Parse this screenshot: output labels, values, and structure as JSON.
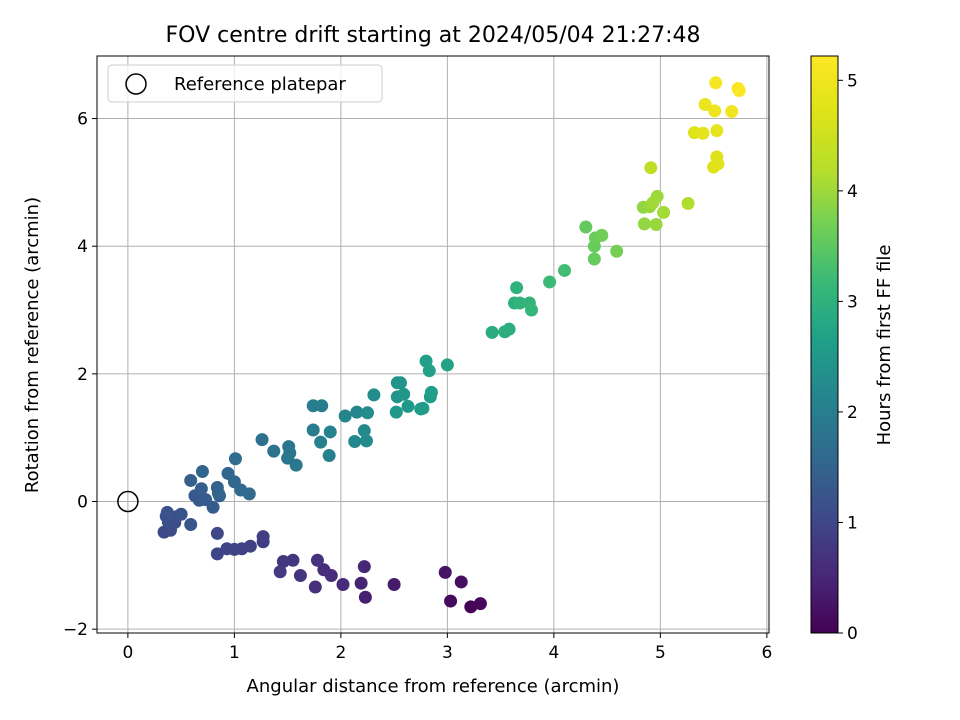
{
  "chart_data": {
    "type": "scatter",
    "title": "FOV centre drift starting at 2024/05/04 21:27:48",
    "xlabel": "Angular distance from reference (arcmin)",
    "ylabel": "Rotation from reference (arcmin)",
    "colorbar_label": "Hours from first FF file",
    "xlim": [
      -0.29,
      6.02
    ],
    "ylim": [
      -2.06,
      6.98
    ],
    "clim": [
      0,
      5.22
    ],
    "colormap": "viridis",
    "grid": true,
    "legend": {
      "placement": "upper-left",
      "entries": [
        "Reference platepar"
      ]
    },
    "x_ticks": [
      0,
      1,
      2,
      3,
      4,
      5,
      6
    ],
    "y_ticks": [
      -2,
      0,
      2,
      4,
      6
    ],
    "c_ticks": [
      0,
      1,
      2,
      3,
      4,
      5
    ],
    "reference_point": {
      "x": 0,
      "y": 0
    },
    "points": [
      {
        "x": 3.22,
        "y": -1.65,
        "c": 0.05
      },
      {
        "x": 3.31,
        "y": -1.6,
        "c": 0.1
      },
      {
        "x": 3.03,
        "y": -1.56,
        "c": 0.15
      },
      {
        "x": 3.13,
        "y": -1.26,
        "c": 0.2
      },
      {
        "x": 2.98,
        "y": -1.11,
        "c": 0.25
      },
      {
        "x": 2.5,
        "y": -1.3,
        "c": 0.35
      },
      {
        "x": 2.23,
        "y": -1.5,
        "c": 0.4
      },
      {
        "x": 2.19,
        "y": -1.28,
        "c": 0.45
      },
      {
        "x": 2.22,
        "y": -1.02,
        "c": 0.5
      },
      {
        "x": 2.02,
        "y": -1.3,
        "c": 0.55
      },
      {
        "x": 1.91,
        "y": -1.16,
        "c": 0.6
      },
      {
        "x": 1.84,
        "y": -1.07,
        "c": 0.62
      },
      {
        "x": 1.76,
        "y": -1.34,
        "c": 0.65
      },
      {
        "x": 1.78,
        "y": -0.92,
        "c": 0.7
      },
      {
        "x": 1.62,
        "y": -1.16,
        "c": 0.72
      },
      {
        "x": 1.55,
        "y": -0.92,
        "c": 0.75
      },
      {
        "x": 1.46,
        "y": -0.94,
        "c": 0.78
      },
      {
        "x": 1.43,
        "y": -1.1,
        "c": 0.8
      },
      {
        "x": 1.27,
        "y": -0.63,
        "c": 0.85
      },
      {
        "x": 1.27,
        "y": -0.55,
        "c": 0.87
      },
      {
        "x": 1.15,
        "y": -0.7,
        "c": 0.9
      },
      {
        "x": 1.07,
        "y": -0.74,
        "c": 0.92
      },
      {
        "x": 1.0,
        "y": -0.75,
        "c": 0.95
      },
      {
        "x": 0.93,
        "y": -0.74,
        "c": 0.97
      },
      {
        "x": 0.84,
        "y": -0.82,
        "c": 1.0
      },
      {
        "x": 0.84,
        "y": -0.5,
        "c": 1.02
      },
      {
        "x": 0.34,
        "y": -0.48,
        "c": 1.05
      },
      {
        "x": 0.4,
        "y": -0.45,
        "c": 1.08
      },
      {
        "x": 0.44,
        "y": -0.33,
        "c": 1.1
      },
      {
        "x": 0.38,
        "y": -0.32,
        "c": 1.12
      },
      {
        "x": 0.45,
        "y": -0.24,
        "c": 1.15
      },
      {
        "x": 0.36,
        "y": -0.23,
        "c": 1.17
      },
      {
        "x": 0.5,
        "y": -0.2,
        "c": 1.2
      },
      {
        "x": 0.37,
        "y": -0.17,
        "c": 1.22
      },
      {
        "x": 0.59,
        "y": -0.36,
        "c": 1.25
      },
      {
        "x": 0.67,
        "y": 0.02,
        "c": 1.3
      },
      {
        "x": 0.63,
        "y": 0.09,
        "c": 1.32
      },
      {
        "x": 0.73,
        "y": 0.03,
        "c": 1.35
      },
      {
        "x": 0.8,
        "y": -0.09,
        "c": 1.37
      },
      {
        "x": 0.69,
        "y": 0.2,
        "c": 1.4
      },
      {
        "x": 0.59,
        "y": 0.33,
        "c": 1.42
      },
      {
        "x": 0.86,
        "y": 0.09,
        "c": 1.45
      },
      {
        "x": 0.84,
        "y": 0.22,
        "c": 1.47
      },
      {
        "x": 0.85,
        "y": 0.13,
        "c": 1.5
      },
      {
        "x": 0.7,
        "y": 0.47,
        "c": 1.52
      },
      {
        "x": 0.94,
        "y": 0.44,
        "c": 1.55
      },
      {
        "x": 1.0,
        "y": 0.31,
        "c": 1.57
      },
      {
        "x": 1.06,
        "y": 0.18,
        "c": 1.6
      },
      {
        "x": 1.14,
        "y": 0.12,
        "c": 1.62
      },
      {
        "x": 1.01,
        "y": 0.67,
        "c": 1.65
      },
      {
        "x": 1.26,
        "y": 0.97,
        "c": 1.75
      },
      {
        "x": 1.37,
        "y": 0.79,
        "c": 1.78
      },
      {
        "x": 1.51,
        "y": 0.86,
        "c": 1.8
      },
      {
        "x": 1.52,
        "y": 0.76,
        "c": 1.82
      },
      {
        "x": 1.5,
        "y": 0.68,
        "c": 1.85
      },
      {
        "x": 1.58,
        "y": 0.57,
        "c": 1.87
      },
      {
        "x": 1.74,
        "y": 1.12,
        "c": 1.95
      },
      {
        "x": 1.74,
        "y": 1.5,
        "c": 2.0
      },
      {
        "x": 1.82,
        "y": 1.5,
        "c": 2.02
      },
      {
        "x": 1.81,
        "y": 0.93,
        "c": 2.05
      },
      {
        "x": 1.89,
        "y": 0.72,
        "c": 2.07
      },
      {
        "x": 1.9,
        "y": 1.09,
        "c": 2.1
      },
      {
        "x": 2.04,
        "y": 1.34,
        "c": 2.15
      },
      {
        "x": 2.15,
        "y": 1.4,
        "c": 2.18
      },
      {
        "x": 2.13,
        "y": 0.94,
        "c": 2.2
      },
      {
        "x": 2.22,
        "y": 1.11,
        "c": 2.22
      },
      {
        "x": 2.24,
        "y": 0.95,
        "c": 2.25
      },
      {
        "x": 2.25,
        "y": 1.39,
        "c": 2.27
      },
      {
        "x": 2.31,
        "y": 1.67,
        "c": 2.3
      },
      {
        "x": 2.53,
        "y": 1.86,
        "c": 2.4
      },
      {
        "x": 2.56,
        "y": 1.86,
        "c": 2.42
      },
      {
        "x": 2.53,
        "y": 1.64,
        "c": 2.45
      },
      {
        "x": 2.59,
        "y": 1.68,
        "c": 2.47
      },
      {
        "x": 2.52,
        "y": 1.4,
        "c": 2.5
      },
      {
        "x": 2.63,
        "y": 1.49,
        "c": 2.52
      },
      {
        "x": 2.75,
        "y": 1.45,
        "c": 2.55
      },
      {
        "x": 2.77,
        "y": 1.46,
        "c": 2.57
      },
      {
        "x": 2.84,
        "y": 1.64,
        "c": 2.6
      },
      {
        "x": 2.85,
        "y": 1.71,
        "c": 2.62
      },
      {
        "x": 2.8,
        "y": 2.2,
        "c": 2.65
      },
      {
        "x": 2.83,
        "y": 2.05,
        "c": 2.67
      },
      {
        "x": 3.0,
        "y": 2.14,
        "c": 2.7
      },
      {
        "x": 3.42,
        "y": 2.65,
        "c": 2.9
      },
      {
        "x": 3.54,
        "y": 2.66,
        "c": 2.92
      },
      {
        "x": 3.58,
        "y": 2.7,
        "c": 2.95
      },
      {
        "x": 3.63,
        "y": 3.11,
        "c": 3.0
      },
      {
        "x": 3.65,
        "y": 3.35,
        "c": 3.02
      },
      {
        "x": 3.68,
        "y": 3.11,
        "c": 3.05
      },
      {
        "x": 3.77,
        "y": 3.11,
        "c": 3.07
      },
      {
        "x": 3.79,
        "y": 3.0,
        "c": 3.1
      },
      {
        "x": 3.96,
        "y": 3.44,
        "c": 3.2
      },
      {
        "x": 4.1,
        "y": 3.62,
        "c": 3.25
      },
      {
        "x": 4.3,
        "y": 4.3,
        "c": 3.55
      },
      {
        "x": 4.38,
        "y": 3.8,
        "c": 3.58
      },
      {
        "x": 4.38,
        "y": 4.0,
        "c": 3.6
      },
      {
        "x": 4.39,
        "y": 4.13,
        "c": 3.62
      },
      {
        "x": 4.45,
        "y": 4.17,
        "c": 3.65
      },
      {
        "x": 4.59,
        "y": 3.92,
        "c": 3.7
      },
      {
        "x": 4.84,
        "y": 4.61,
        "c": 3.9
      },
      {
        "x": 4.85,
        "y": 4.35,
        "c": 3.92
      },
      {
        "x": 4.9,
        "y": 4.62,
        "c": 3.95
      },
      {
        "x": 4.96,
        "y": 4.34,
        "c": 3.97
      },
      {
        "x": 4.97,
        "y": 4.78,
        "c": 4.0
      },
      {
        "x": 4.93,
        "y": 4.68,
        "c": 4.02
      },
      {
        "x": 5.03,
        "y": 4.53,
        "c": 4.05
      },
      {
        "x": 5.26,
        "y": 4.67,
        "c": 4.15
      },
      {
        "x": 4.91,
        "y": 5.23,
        "c": 4.3
      },
      {
        "x": 5.32,
        "y": 5.78,
        "c": 4.75
      },
      {
        "x": 5.4,
        "y": 5.77,
        "c": 4.8
      },
      {
        "x": 5.53,
        "y": 5.81,
        "c": 4.85
      },
      {
        "x": 5.53,
        "y": 5.4,
        "c": 4.7
      },
      {
        "x": 5.5,
        "y": 5.24,
        "c": 4.72
      },
      {
        "x": 5.54,
        "y": 5.29,
        "c": 4.74
      },
      {
        "x": 5.42,
        "y": 6.22,
        "c": 4.95
      },
      {
        "x": 5.51,
        "y": 6.12,
        "c": 4.97
      },
      {
        "x": 5.67,
        "y": 6.11,
        "c": 5.0
      },
      {
        "x": 5.52,
        "y": 6.56,
        "c": 5.1
      },
      {
        "x": 5.73,
        "y": 6.47,
        "c": 5.15
      },
      {
        "x": 5.74,
        "y": 6.44,
        "c": 5.18
      }
    ]
  }
}
